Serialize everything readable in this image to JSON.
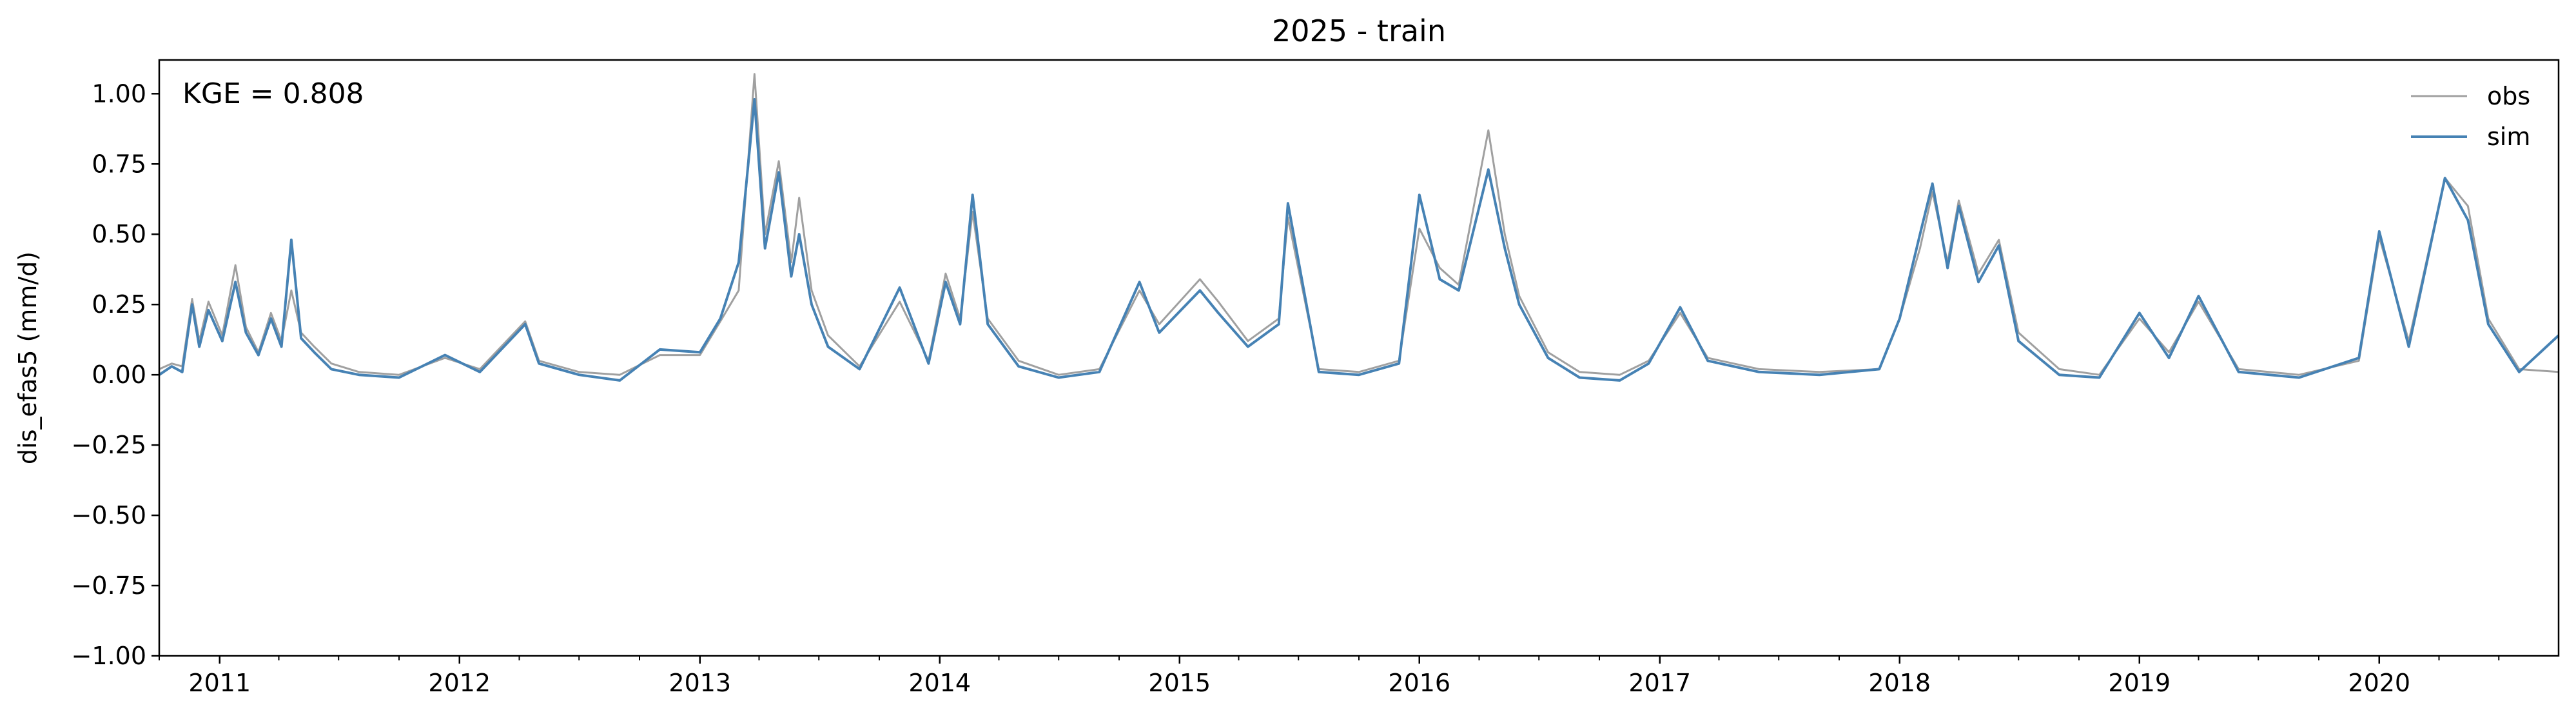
{
  "chart_data": {
    "type": "line",
    "title": "2025 - train",
    "xlabel": "",
    "ylabel": "dis_efas5 (mm/d)",
    "annotation": "KGE = 0.808",
    "x_type": "date",
    "xlim": [
      "2010-10-01",
      "2020-09-30"
    ],
    "ylim": [
      -1.0,
      1.12
    ],
    "yticks": [
      -1.0,
      -0.75,
      -0.5,
      -0.25,
      0.0,
      0.25,
      0.5,
      0.75,
      1.0
    ],
    "ytick_labels": [
      "−1.00",
      "−0.75",
      "−0.50",
      "−0.25",
      "0.00",
      "0.25",
      "0.50",
      "0.75",
      "1.00"
    ],
    "xticks": [
      "2011-01-01",
      "2012-01-01",
      "2013-01-01",
      "2014-01-01",
      "2015-01-01",
      "2016-01-01",
      "2017-01-01",
      "2018-01-01",
      "2019-01-01",
      "2020-01-01"
    ],
    "xtick_labels": [
      "2011",
      "2012",
      "2013",
      "2014",
      "2015",
      "2016",
      "2017",
      "2018",
      "2019",
      "2020"
    ],
    "grid": false,
    "legend_position": "top-right",
    "series": [
      {
        "name": "obs",
        "color": "#a0a0a0",
        "points": [
          [
            "2010-10-01",
            0.02
          ],
          [
            "2010-10-20",
            0.04
          ],
          [
            "2010-11-05",
            0.03
          ],
          [
            "2010-11-20",
            0.27
          ],
          [
            "2010-12-01",
            0.12
          ],
          [
            "2010-12-15",
            0.26
          ],
          [
            "2011-01-05",
            0.14
          ],
          [
            "2011-01-25",
            0.39
          ],
          [
            "2011-02-10",
            0.17
          ],
          [
            "2011-03-01",
            0.08
          ],
          [
            "2011-03-20",
            0.22
          ],
          [
            "2011-04-05",
            0.12
          ],
          [
            "2011-04-20",
            0.3
          ],
          [
            "2011-05-05",
            0.15
          ],
          [
            "2011-05-25",
            0.1
          ],
          [
            "2011-06-20",
            0.04
          ],
          [
            "2011-08-01",
            0.01
          ],
          [
            "2011-10-01",
            0.0
          ],
          [
            "2011-12-10",
            0.06
          ],
          [
            "2012-02-01",
            0.02
          ],
          [
            "2012-04-10",
            0.19
          ],
          [
            "2012-05-01",
            0.05
          ],
          [
            "2012-07-01",
            0.01
          ],
          [
            "2012-09-01",
            0.0
          ],
          [
            "2012-11-01",
            0.07
          ],
          [
            "2013-01-01",
            0.07
          ],
          [
            "2013-02-01",
            0.19
          ],
          [
            "2013-03-01",
            0.3
          ],
          [
            "2013-03-25",
            1.07
          ],
          [
            "2013-04-10",
            0.5
          ],
          [
            "2013-05-01",
            0.76
          ],
          [
            "2013-05-20",
            0.4
          ],
          [
            "2013-06-01",
            0.63
          ],
          [
            "2013-06-20",
            0.3
          ],
          [
            "2013-07-15",
            0.14
          ],
          [
            "2013-09-01",
            0.03
          ],
          [
            "2013-11-01",
            0.26
          ],
          [
            "2013-12-15",
            0.05
          ],
          [
            "2014-01-10",
            0.36
          ],
          [
            "2014-02-01",
            0.2
          ],
          [
            "2014-02-20",
            0.58
          ],
          [
            "2014-03-15",
            0.2
          ],
          [
            "2014-05-01",
            0.05
          ],
          [
            "2014-07-01",
            0.0
          ],
          [
            "2014-09-01",
            0.02
          ],
          [
            "2014-11-01",
            0.3
          ],
          [
            "2014-12-01",
            0.18
          ],
          [
            "2015-02-01",
            0.34
          ],
          [
            "2015-03-01",
            0.26
          ],
          [
            "2015-04-15",
            0.12
          ],
          [
            "2015-06-01",
            0.2
          ],
          [
            "2015-06-15",
            0.56
          ],
          [
            "2015-08-01",
            0.02
          ],
          [
            "2015-10-01",
            0.01
          ],
          [
            "2015-12-01",
            0.05
          ],
          [
            "2016-01-01",
            0.52
          ],
          [
            "2016-02-01",
            0.38
          ],
          [
            "2016-03-01",
            0.32
          ],
          [
            "2016-04-15",
            0.87
          ],
          [
            "2016-05-10",
            0.5
          ],
          [
            "2016-06-01",
            0.28
          ],
          [
            "2016-07-15",
            0.08
          ],
          [
            "2016-09-01",
            0.01
          ],
          [
            "2016-11-01",
            0.0
          ],
          [
            "2016-12-15",
            0.05
          ],
          [
            "2017-02-01",
            0.22
          ],
          [
            "2017-03-15",
            0.06
          ],
          [
            "2017-06-01",
            0.02
          ],
          [
            "2017-09-01",
            0.01
          ],
          [
            "2017-12-01",
            0.02
          ],
          [
            "2018-01-01",
            0.2
          ],
          [
            "2018-02-01",
            0.45
          ],
          [
            "2018-02-20",
            0.65
          ],
          [
            "2018-03-15",
            0.4
          ],
          [
            "2018-04-01",
            0.62
          ],
          [
            "2018-05-01",
            0.36
          ],
          [
            "2018-06-01",
            0.48
          ],
          [
            "2018-07-01",
            0.15
          ],
          [
            "2018-09-01",
            0.02
          ],
          [
            "2018-11-01",
            0.0
          ],
          [
            "2019-01-01",
            0.2
          ],
          [
            "2019-02-15",
            0.08
          ],
          [
            "2019-04-01",
            0.26
          ],
          [
            "2019-06-01",
            0.02
          ],
          [
            "2019-09-01",
            0.0
          ],
          [
            "2019-12-01",
            0.05
          ],
          [
            "2020-01-01",
            0.49
          ],
          [
            "2020-02-15",
            0.12
          ],
          [
            "2020-04-10",
            0.7
          ],
          [
            "2020-05-15",
            0.6
          ],
          [
            "2020-06-15",
            0.2
          ],
          [
            "2020-08-01",
            0.02
          ],
          [
            "2020-09-30",
            0.01
          ]
        ]
      },
      {
        "name": "sim",
        "color": "#4682b4",
        "points": [
          [
            "2010-10-01",
            0.0
          ],
          [
            "2010-10-20",
            0.03
          ],
          [
            "2010-11-05",
            0.01
          ],
          [
            "2010-11-20",
            0.25
          ],
          [
            "2010-12-01",
            0.1
          ],
          [
            "2010-12-15",
            0.23
          ],
          [
            "2011-01-05",
            0.12
          ],
          [
            "2011-01-25",
            0.33
          ],
          [
            "2011-02-10",
            0.15
          ],
          [
            "2011-03-01",
            0.07
          ],
          [
            "2011-03-20",
            0.2
          ],
          [
            "2011-04-05",
            0.1
          ],
          [
            "2011-04-20",
            0.48
          ],
          [
            "2011-05-05",
            0.13
          ],
          [
            "2011-05-25",
            0.08
          ],
          [
            "2011-06-20",
            0.02
          ],
          [
            "2011-08-01",
            0.0
          ],
          [
            "2011-10-01",
            -0.01
          ],
          [
            "2011-12-10",
            0.07
          ],
          [
            "2012-02-01",
            0.01
          ],
          [
            "2012-04-10",
            0.18
          ],
          [
            "2012-05-01",
            0.04
          ],
          [
            "2012-07-01",
            0.0
          ],
          [
            "2012-09-01",
            -0.02
          ],
          [
            "2012-11-01",
            0.09
          ],
          [
            "2013-01-01",
            0.08
          ],
          [
            "2013-02-01",
            0.2
          ],
          [
            "2013-03-01",
            0.4
          ],
          [
            "2013-03-25",
            0.98
          ],
          [
            "2013-04-10",
            0.45
          ],
          [
            "2013-05-01",
            0.72
          ],
          [
            "2013-05-20",
            0.35
          ],
          [
            "2013-06-01",
            0.5
          ],
          [
            "2013-06-20",
            0.25
          ],
          [
            "2013-07-15",
            0.1
          ],
          [
            "2013-09-01",
            0.02
          ],
          [
            "2013-11-01",
            0.31
          ],
          [
            "2013-12-15",
            0.04
          ],
          [
            "2014-01-10",
            0.33
          ],
          [
            "2014-02-01",
            0.18
          ],
          [
            "2014-02-20",
            0.64
          ],
          [
            "2014-03-15",
            0.18
          ],
          [
            "2014-05-01",
            0.03
          ],
          [
            "2014-07-01",
            -0.01
          ],
          [
            "2014-09-01",
            0.01
          ],
          [
            "2014-11-01",
            0.33
          ],
          [
            "2014-12-01",
            0.15
          ],
          [
            "2015-02-01",
            0.3
          ],
          [
            "2015-03-01",
            0.22
          ],
          [
            "2015-04-15",
            0.1
          ],
          [
            "2015-06-01",
            0.18
          ],
          [
            "2015-06-15",
            0.61
          ],
          [
            "2015-08-01",
            0.01
          ],
          [
            "2015-10-01",
            0.0
          ],
          [
            "2015-12-01",
            0.04
          ],
          [
            "2016-01-01",
            0.64
          ],
          [
            "2016-02-01",
            0.34
          ],
          [
            "2016-03-01",
            0.3
          ],
          [
            "2016-04-15",
            0.73
          ],
          [
            "2016-05-10",
            0.45
          ],
          [
            "2016-06-01",
            0.25
          ],
          [
            "2016-07-15",
            0.06
          ],
          [
            "2016-09-01",
            -0.01
          ],
          [
            "2016-11-01",
            -0.02
          ],
          [
            "2016-12-15",
            0.04
          ],
          [
            "2017-02-01",
            0.24
          ],
          [
            "2017-03-15",
            0.05
          ],
          [
            "2017-06-01",
            0.01
          ],
          [
            "2017-09-01",
            0.0
          ],
          [
            "2017-12-01",
            0.02
          ],
          [
            "2018-01-01",
            0.2
          ],
          [
            "2018-02-01",
            0.5
          ],
          [
            "2018-02-20",
            0.68
          ],
          [
            "2018-03-15",
            0.38
          ],
          [
            "2018-04-01",
            0.6
          ],
          [
            "2018-05-01",
            0.33
          ],
          [
            "2018-06-01",
            0.46
          ],
          [
            "2018-07-01",
            0.12
          ],
          [
            "2018-09-01",
            0.0
          ],
          [
            "2018-11-01",
            -0.01
          ],
          [
            "2019-01-01",
            0.22
          ],
          [
            "2019-02-15",
            0.06
          ],
          [
            "2019-04-01",
            0.28
          ],
          [
            "2019-06-01",
            0.01
          ],
          [
            "2019-09-01",
            -0.01
          ],
          [
            "2019-12-01",
            0.06
          ],
          [
            "2020-01-01",
            0.51
          ],
          [
            "2020-02-15",
            0.1
          ],
          [
            "2020-04-10",
            0.7
          ],
          [
            "2020-05-15",
            0.55
          ],
          [
            "2020-06-15",
            0.18
          ],
          [
            "2020-08-01",
            0.01
          ],
          [
            "2020-09-30",
            0.14
          ]
        ]
      }
    ]
  }
}
